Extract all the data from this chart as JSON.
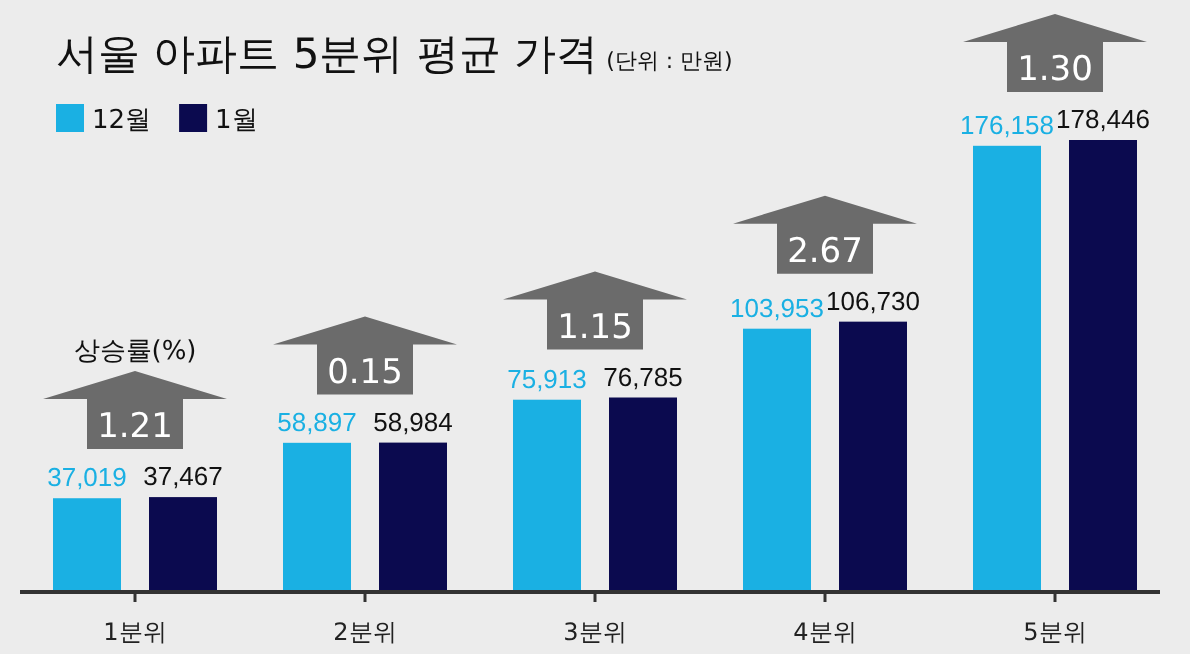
{
  "chart_data": {
    "type": "bar",
    "title": "서울 아파트 5분위 평균 가격",
    "subtitle": "(단위 : 만원)",
    "categories": [
      "1분위",
      "2분위",
      "3분위",
      "4분위",
      "5분위"
    ],
    "series": [
      {
        "name": "12월",
        "color": "#1ab0e3",
        "values": [
          37019,
          58897,
          75913,
          103953,
          176158
        ],
        "value_labels": [
          "37,019",
          "58,897",
          "75,913",
          "103,953",
          "176,158"
        ]
      },
      {
        "name": "1월",
        "color": "#0b0a4f",
        "values": [
          37467,
          58984,
          76785,
          106730,
          178446
        ],
        "value_labels": [
          "37,467",
          "58,984",
          "76,785",
          "106,730",
          "178,446"
        ]
      }
    ],
    "legend": "top left",
    "annotations": [
      "상승률(%)",
      "1.21",
      "0.15",
      "1.15",
      "2.67",
      "1.30"
    ]
  }
}
